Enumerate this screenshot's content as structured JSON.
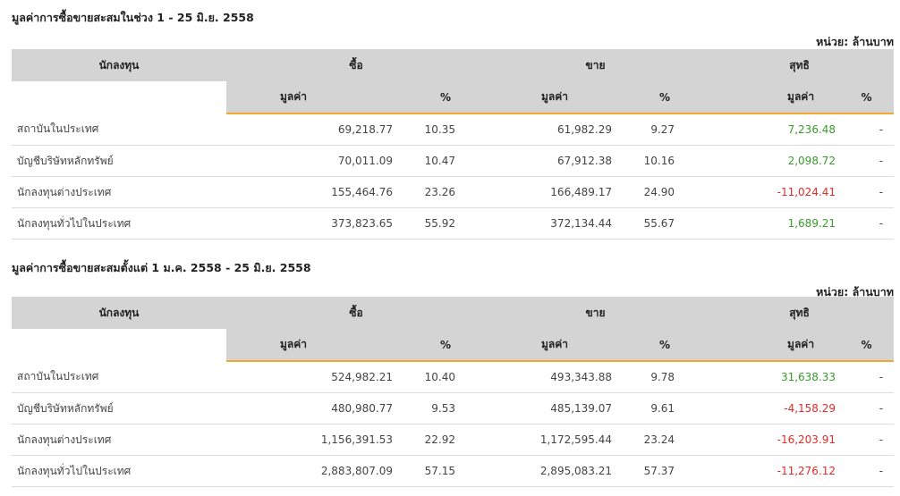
{
  "unit_label": "หน่วย: ล้านบาท",
  "headers": {
    "investor": "นักลงทุน",
    "buy": "ซื้อ",
    "sell": "ขาย",
    "net": "สุทธิ",
    "value": "มูลค่า",
    "percent": "%"
  },
  "tables": [
    {
      "title": "มูลค่าการซื้อขายสะสมในช่วง 1 - 25 มิ.ย. 2558",
      "rows": [
        {
          "investor": "สถาบันในประเทศ",
          "buy_value": "69,218.77",
          "buy_pct": "10.35",
          "sell_value": "61,982.29",
          "sell_pct": "9.27",
          "net_value": "7,236.48",
          "net_pct": "-",
          "net_sign": "pos"
        },
        {
          "investor": "บัญชีบริษัทหลักทรัพย์",
          "buy_value": "70,011.09",
          "buy_pct": "10.47",
          "sell_value": "67,912.38",
          "sell_pct": "10.16",
          "net_value": "2,098.72",
          "net_pct": "-",
          "net_sign": "pos"
        },
        {
          "investor": "นักลงทุนต่างประเทศ",
          "buy_value": "155,464.76",
          "buy_pct": "23.26",
          "sell_value": "166,489.17",
          "sell_pct": "24.90",
          "net_value": "-11,024.41",
          "net_pct": "-",
          "net_sign": "neg"
        },
        {
          "investor": "นักลงทุนทั่วไปในประเทศ",
          "buy_value": "373,823.65",
          "buy_pct": "55.92",
          "sell_value": "372,134.44",
          "sell_pct": "55.67",
          "net_value": "1,689.21",
          "net_pct": "-",
          "net_sign": "pos"
        }
      ]
    },
    {
      "title": "มูลค่าการซื้อขายสะสมตั้งแต่ 1 ม.ค. 2558 - 25 มิ.ย. 2558",
      "rows": [
        {
          "investor": "สถาบันในประเทศ",
          "buy_value": "524,982.21",
          "buy_pct": "10.40",
          "sell_value": "493,343.88",
          "sell_pct": "9.78",
          "net_value": "31,638.33",
          "net_pct": "-",
          "net_sign": "pos"
        },
        {
          "investor": "บัญชีบริษัทหลักทรัพย์",
          "buy_value": "480,980.77",
          "buy_pct": "9.53",
          "sell_value": "485,139.07",
          "sell_pct": "9.61",
          "net_value": "-4,158.29",
          "net_pct": "-",
          "net_sign": "neg"
        },
        {
          "investor": "นักลงทุนต่างประเทศ",
          "buy_value": "1,156,391.53",
          "buy_pct": "22.92",
          "sell_value": "1,172,595.44",
          "sell_pct": "23.24",
          "net_value": "-16,203.91",
          "net_pct": "-",
          "net_sign": "neg"
        },
        {
          "investor": "นักลงทุนทั่วไปในประเทศ",
          "buy_value": "2,883,807.09",
          "buy_pct": "57.15",
          "sell_value": "2,895,083.21",
          "sell_pct": "57.37",
          "net_value": "-11,276.12",
          "net_pct": "-",
          "net_sign": "neg"
        }
      ]
    }
  ]
}
